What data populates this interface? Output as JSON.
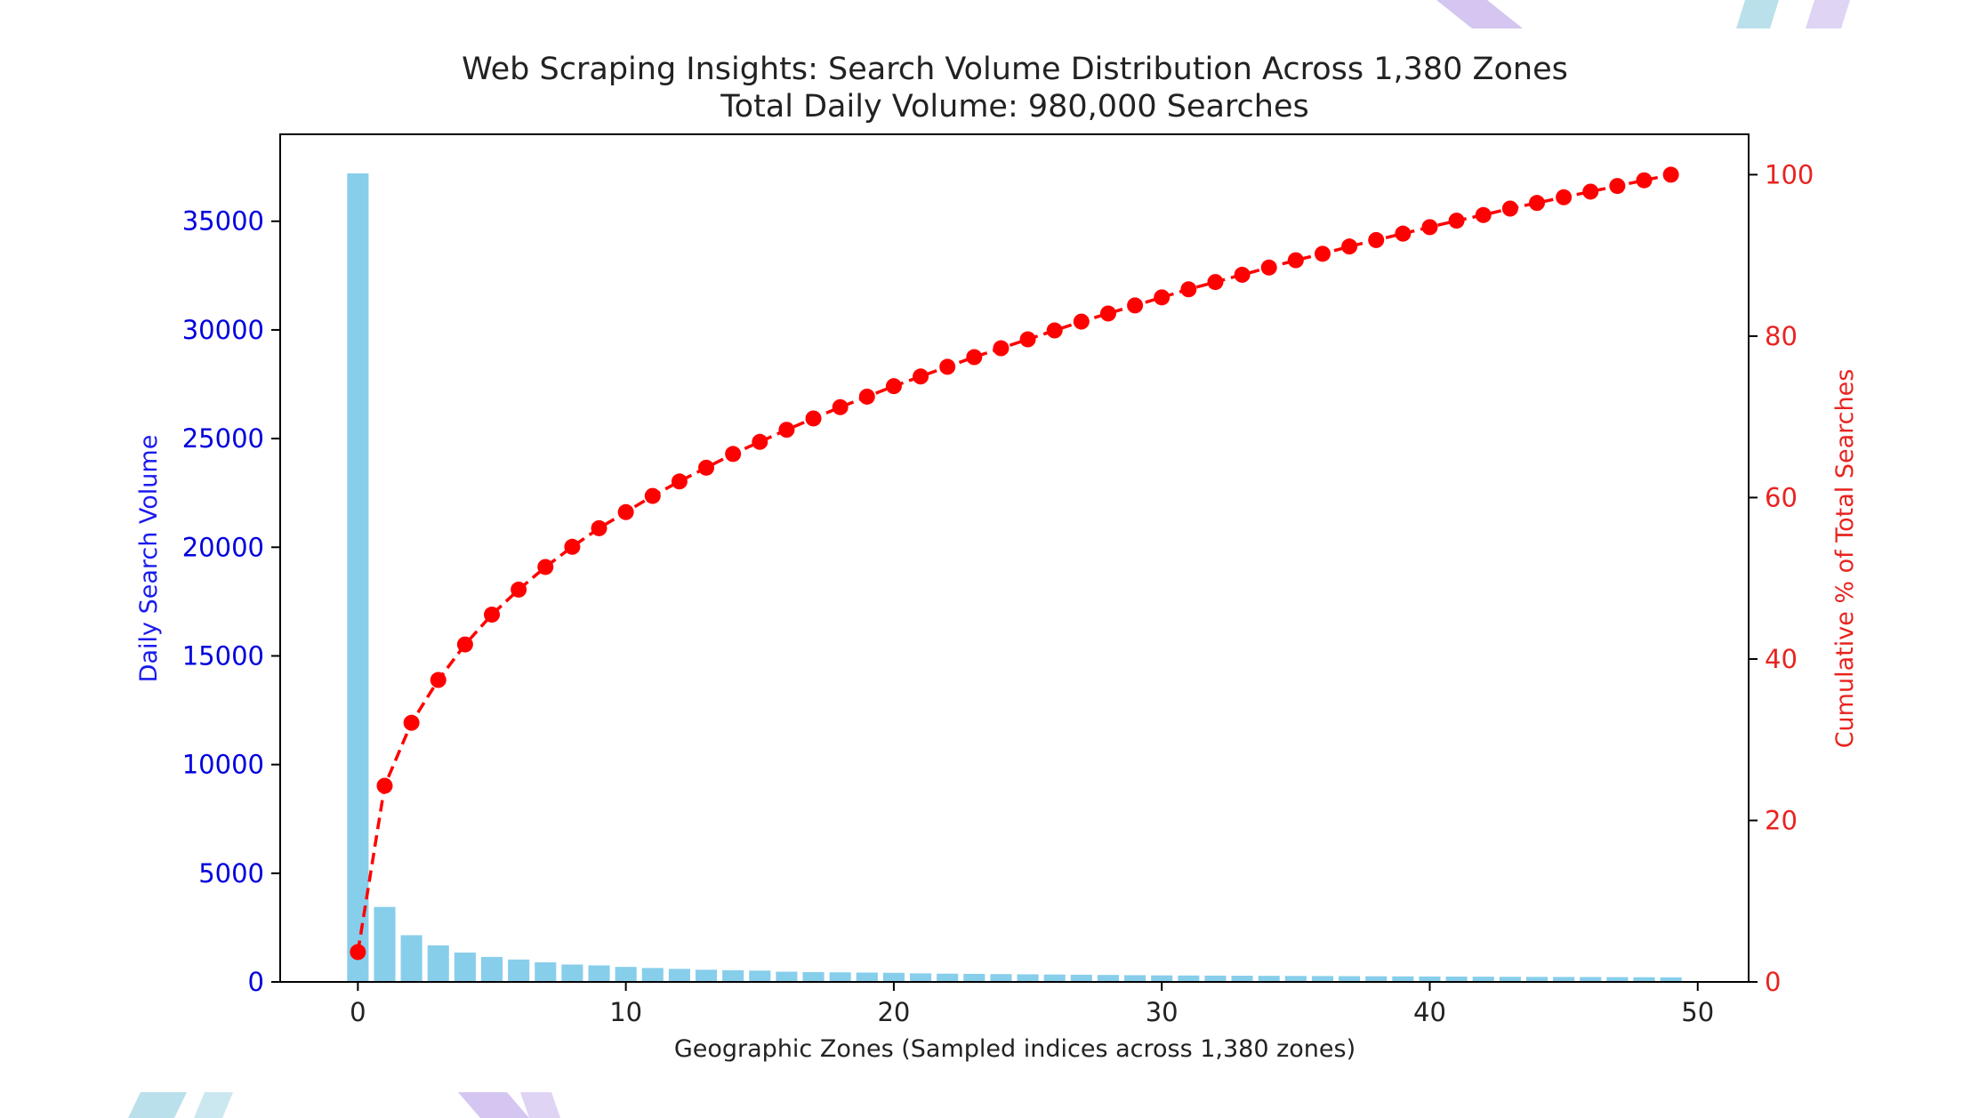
{
  "chart_data": {
    "type": "bar",
    "title": "Web Scraping Insights: Search Volume Distribution Across 1,380 Zones",
    "subtitle": "Total Daily Volume: 980,000 Searches",
    "xlabel": "Geographic Zones (Sampled indices across 1,380 zones)",
    "ylabel": "Daily Search Volume",
    "y2label": "Cumulative % of Total Searches",
    "xlim": [
      -2.9,
      51.9
    ],
    "ylim": [
      0,
      39000
    ],
    "y2lim": [
      0,
      105
    ],
    "x_ticks": [
      0,
      10,
      20,
      30,
      40,
      50
    ],
    "y_ticks": [
      0,
      5000,
      10000,
      15000,
      20000,
      25000,
      30000,
      35000
    ],
    "y2_ticks": [
      0,
      20,
      40,
      60,
      80,
      100
    ],
    "grid": false,
    "x": [
      0,
      1,
      2,
      3,
      4,
      5,
      6,
      7,
      8,
      9,
      10,
      11,
      12,
      13,
      14,
      15,
      16,
      17,
      18,
      19,
      20,
      21,
      22,
      23,
      24,
      25,
      26,
      27,
      28,
      29,
      30,
      31,
      32,
      33,
      34,
      35,
      36,
      37,
      38,
      39,
      40,
      41,
      42,
      43,
      44,
      45,
      46,
      47,
      48,
      49
    ],
    "series": [
      {
        "type": "bar",
        "axis": "left",
        "color": "#87ceeb",
        "values": [
          37200,
          3450,
          2150,
          1680,
          1350,
          1150,
          1030,
          900,
          800,
          760,
          690,
          640,
          600,
          560,
          540,
          520,
          470,
          450,
          440,
          430,
          420,
          395,
          380,
          370,
          360,
          350,
          340,
          330,
          320,
          310,
          300,
          295,
          290,
          285,
          280,
          275,
          270,
          265,
          260,
          255,
          250,
          245,
          240,
          235,
          232,
          228,
          224,
          220,
          216,
          212
        ]
      },
      {
        "type": "line",
        "axis": "right",
        "color": "#ff0000",
        "linestyle": "dashed",
        "marker": "circle",
        "values": [
          3.7,
          24.3,
          32.1,
          37.4,
          41.8,
          45.5,
          48.6,
          51.4,
          53.9,
          56.2,
          58.2,
          60.2,
          62.0,
          63.7,
          65.4,
          66.9,
          68.4,
          69.8,
          71.2,
          72.5,
          73.8,
          75.0,
          76.2,
          77.4,
          78.5,
          79.6,
          80.7,
          81.8,
          82.8,
          83.8,
          84.8,
          85.8,
          86.7,
          87.6,
          88.5,
          89.4,
          90.2,
          91.1,
          91.9,
          92.7,
          93.5,
          94.3,
          95.0,
          95.8,
          96.5,
          97.2,
          97.9,
          98.6,
          99.3,
          100.0
        ]
      }
    ]
  },
  "decor": {
    "accent_blue": "#a9d8e6",
    "accent_purple": "#c9b8ec"
  }
}
